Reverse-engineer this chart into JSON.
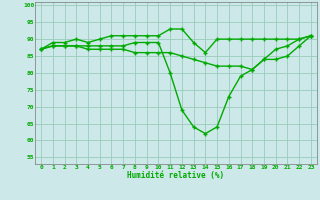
{
  "xlabel": "Humidité relative (%)",
  "xlim": [
    -0.5,
    23.5
  ],
  "ylim": [
    53,
    101
  ],
  "yticks": [
    55,
    60,
    65,
    70,
    75,
    80,
    85,
    90,
    95,
    100
  ],
  "xticks": [
    0,
    1,
    2,
    3,
    4,
    5,
    6,
    7,
    8,
    9,
    10,
    11,
    12,
    13,
    14,
    15,
    16,
    17,
    18,
    19,
    20,
    21,
    22,
    23
  ],
  "bg_color": "#cce8e8",
  "grid_color": "#99ccbb",
  "line_color": "#00aa00",
  "line1": [
    87,
    89,
    89,
    90,
    89,
    90,
    91,
    91,
    91,
    91,
    91,
    93,
    93,
    89,
    86,
    90,
    90,
    90,
    90,
    90,
    90,
    90,
    90,
    91
  ],
  "line2": [
    87,
    88,
    88,
    88,
    88,
    88,
    88,
    88,
    89,
    89,
    89,
    80,
    69,
    64,
    62,
    64,
    73,
    79,
    81,
    84,
    87,
    88,
    90,
    91
  ],
  "line3": [
    87,
    88,
    88,
    88,
    87,
    87,
    87,
    87,
    86,
    86,
    86,
    86,
    85,
    84,
    83,
    82,
    82,
    82,
    81,
    84,
    84,
    85,
    88,
    91
  ]
}
